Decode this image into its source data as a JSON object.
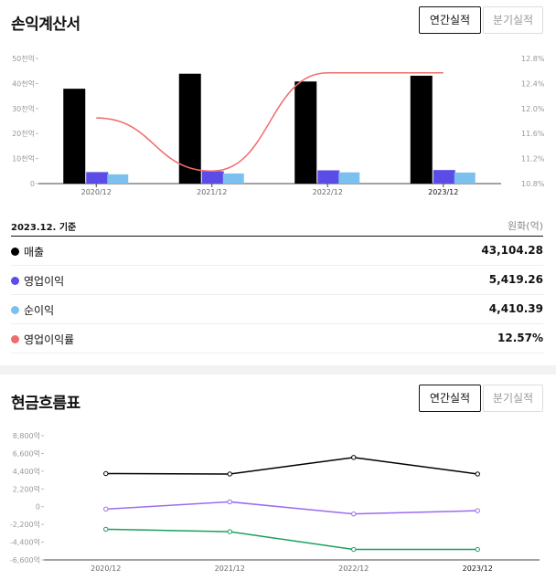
{
  "income": {
    "title": "손익계산서",
    "tab_annual": "연간실적",
    "tab_quarter": "분기실적",
    "basis": "2023.12. 기준",
    "unit": "원화(억)",
    "rows": [
      {
        "label": "매출",
        "value": "43,104.28",
        "color": "#000000"
      },
      {
        "label": "영업이익",
        "value": "5,419.26",
        "color": "#5b4ce8"
      },
      {
        "label": "순이익",
        "value": "4,410.39",
        "color": "#7cc0f0"
      },
      {
        "label": "영업이익률",
        "value": "12.57%",
        "color": "#f26b6b"
      }
    ]
  },
  "cashflow": {
    "title": "현금흐름표",
    "tab_annual": "연간실적",
    "tab_quarter": "분기실적"
  },
  "chart_data": [
    {
      "type": "bar",
      "categories": [
        "2020/12",
        "2021/12",
        "2022/12",
        "2023/12"
      ],
      "series": [
        {
          "name": "매출",
          "color": "#000000",
          "values": [
            37900,
            43900,
            40800,
            43104.28
          ]
        },
        {
          "name": "영업이익",
          "color": "#5b4ce8",
          "values": [
            4600,
            4950,
            5300,
            5419.26
          ]
        },
        {
          "name": "순이익",
          "color": "#7cc0f0",
          "values": [
            3700,
            4050,
            4500,
            4410.39
          ]
        }
      ],
      "line_series": {
        "name": "영업이익률",
        "color": "#f26b6b",
        "values": [
          11.85,
          11.0,
          12.57,
          12.57
        ],
        "axis": "right"
      },
      "y_ticks": [
        "0",
        "10천억",
        "20천억",
        "30천억",
        "40천억",
        "50천억"
      ],
      "ylim": [
        0,
        50000
      ],
      "y2_ticks": [
        "10.8%",
        "11.2%",
        "11.6%",
        "12.0%",
        "12.4%",
        "12.8%"
      ],
      "y2lim": [
        10.8,
        12.8
      ],
      "grid": false,
      "legend": "none"
    },
    {
      "type": "line",
      "categories": [
        "2020/12",
        "2021/12",
        "2022/12",
        "2023/12"
      ],
      "series": [
        {
          "color": "#000000",
          "values": [
            4100,
            4050,
            6100,
            4050
          ]
        },
        {
          "color": "#9b6cf0",
          "values": [
            -300,
            600,
            -900,
            -500
          ]
        },
        {
          "color": "#17a05d",
          "values": [
            -2800,
            -3100,
            -5300,
            -5300
          ]
        }
      ],
      "y_ticks": [
        "8,800억",
        "6,600억",
        "4,400억",
        "2,200억",
        "0",
        "-2,200억",
        "-4,400억",
        "-6,600억"
      ],
      "ylim": [
        -6600,
        8800
      ],
      "grid": false,
      "legend": "none"
    }
  ]
}
